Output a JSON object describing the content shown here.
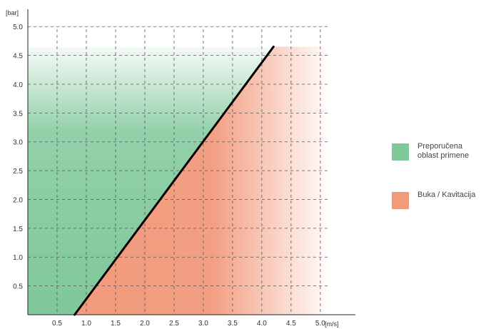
{
  "chart_data": {
    "type": "area",
    "title": "",
    "xlabel": "[m/s]",
    "ylabel": "[bar]",
    "xlim": [
      0,
      5.6
    ],
    "ylim": [
      0,
      5.3
    ],
    "x_ticks": [
      "0.5",
      "1.0",
      "1.5",
      "2.0",
      "2.5",
      "3.0",
      "3.5",
      "4.0",
      "4.5",
      "5.0"
    ],
    "y_ticks": [
      "0.5",
      "1.0",
      "1.5",
      "2.0",
      "2.5",
      "3.0",
      "3.5",
      "4.0",
      "4.5",
      "5.0"
    ],
    "grid": true,
    "region_top": 4.65,
    "region_right": 5.1,
    "boundary_line": {
      "x": [
        0.8,
        4.2
      ],
      "y": [
        0.0,
        4.65
      ]
    },
    "series": [
      {
        "name": "Preporučena oblast primene",
        "color": "#7fc89a",
        "side": "left of line"
      },
      {
        "name": "Buka / Kavitacija",
        "color": "#f29a7c",
        "side": "right of line"
      }
    ],
    "legend_position": "right"
  },
  "legend": {
    "items": [
      {
        "label_lines": [
          "Preporučena",
          "oblast primene"
        ],
        "color": "#7fc89a"
      },
      {
        "label_lines": [
          "Buka / Kavitacija"
        ],
        "color": "#f29a7c"
      }
    ]
  }
}
